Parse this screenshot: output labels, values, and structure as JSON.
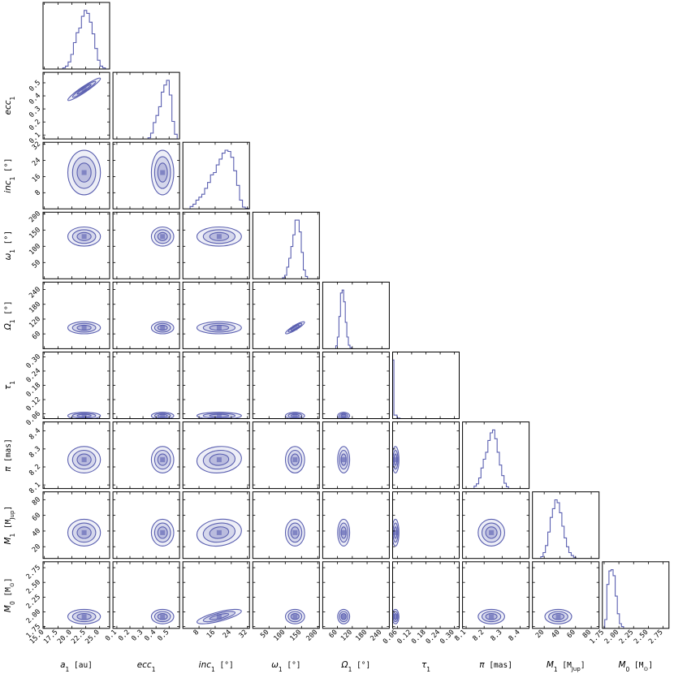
{
  "chart_data": {
    "type": "corner",
    "color": "#5a5fb0",
    "params": [
      {
        "key": "a1",
        "label_main": "a",
        "label_sub": "1",
        "label_unit": " [au]",
        "ticks": [
          "15.0",
          "17.5",
          "20.0",
          "22.5",
          "25.0"
        ],
        "tick_values": [
          15.0,
          17.5,
          20.0,
          22.5,
          25.0
        ],
        "range": [
          14.8,
          26.8
        ],
        "mean": 22.2,
        "sd": 1.2,
        "hist": [
          0.02,
          0.05,
          0.12,
          0.25,
          0.45,
          0.62,
          0.7,
          0.9,
          1.0,
          0.95,
          0.8,
          0.6,
          0.35,
          0.15,
          0.05,
          0.02
        ]
      },
      {
        "key": "ecc1",
        "label_main": "ecc",
        "label_sub": "1",
        "label_unit": "",
        "ticks": [
          "0.1",
          "0.2",
          "0.3",
          "0.4",
          "0.5"
        ],
        "tick_values": [
          0.1,
          0.2,
          0.3,
          0.4,
          0.5
        ],
        "range": [
          0.07,
          0.58
        ],
        "mean": 0.45,
        "sd": 0.035,
        "hist": [
          0.02,
          0.1,
          0.28,
          0.4,
          0.55,
          0.8,
          0.92,
          1.0,
          0.75,
          0.3,
          0.08
        ]
      },
      {
        "key": "inc1",
        "label_main": "inc",
        "label_sub": "1",
        "label_unit": " [°]",
        "ticks": [
          "8",
          "16",
          "24",
          "32"
        ],
        "tick_values": [
          8,
          16,
          24,
          32
        ],
        "range": [
          0,
          33
        ],
        "mean": 18,
        "sd": 4.5,
        "hist": [
          0.04,
          0.08,
          0.15,
          0.2,
          0.25,
          0.35,
          0.45,
          0.58,
          0.62,
          0.75,
          0.85,
          0.95,
          1.0,
          0.98,
          0.88,
          0.65,
          0.4,
          0.15,
          0.03,
          0.01
        ]
      },
      {
        "key": "omega1",
        "label_main": "ω",
        "label_sub": "1",
        "label_unit": " [°]",
        "ticks": [
          "50",
          "100",
          "150",
          "200"
        ],
        "tick_values": [
          50,
          100,
          150,
          200
        ],
        "range": [
          0,
          205
        ],
        "mean": 130,
        "sd": 12,
        "hist": [
          0.02,
          0.06,
          0.2,
          0.35,
          0.55,
          0.75,
          1.0,
          1.0,
          0.8,
          0.45,
          0.15,
          0.04
        ]
      },
      {
        "key": "Omega1",
        "label_main": "Ω",
        "label_sub": "1",
        "label_unit": " [°]",
        "ticks": [
          "60",
          "120",
          "180",
          "240"
        ],
        "tick_values": [
          60,
          120,
          180,
          240
        ],
        "range": [
          0,
          270
        ],
        "mean": 85,
        "sd": 10,
        "hist": [
          0.05,
          0.2,
          0.55,
          0.95,
          1.0,
          0.8,
          0.45,
          0.2,
          0.06,
          0.02
        ]
      },
      {
        "key": "tau1",
        "label_main": "τ",
        "label_sub": "1",
        "label_unit": "",
        "ticks": [
          "0.06",
          "0.12",
          "0.18",
          "0.24",
          "0.30"
        ],
        "tick_values": [
          0.06,
          0.12,
          0.18,
          0.24,
          0.3
        ],
        "range": [
          0.04,
          0.32
        ],
        "mean": 0.052,
        "sd": 0.006,
        "hist": [
          1.0,
          0.06,
          0.01
        ]
      },
      {
        "key": "plx",
        "label_main": "π",
        "label_sub": "",
        "label_unit": " [mas]",
        "ticks": [
          "8.1",
          "8.2",
          "8.3",
          "8.4"
        ],
        "tick_values": [
          8.1,
          8.2,
          8.3,
          8.4
        ],
        "range": [
          8.08,
          8.45
        ],
        "mean": 8.24,
        "sd": 0.03,
        "hist": [
          0.04,
          0.08,
          0.18,
          0.35,
          0.5,
          0.62,
          0.82,
          0.95,
          1.0,
          0.85,
          0.62,
          0.4,
          0.22,
          0.09,
          0.03
        ]
      },
      {
        "key": "M1",
        "label_main": "M",
        "label_sub": "1",
        "label_unit": " [M",
        "label_unit_sub": "Jup",
        "label_unit_end": "]",
        "ticks": [
          "20",
          "40",
          "60",
          "80"
        ],
        "tick_values": [
          20,
          40,
          60,
          80
        ],
        "range": [
          5,
          90
        ],
        "mean": 38,
        "sd": 7,
        "hist": [
          0.03,
          0.1,
          0.22,
          0.45,
          0.7,
          0.85,
          1.0,
          0.95,
          0.78,
          0.55,
          0.35,
          0.2,
          0.1,
          0.05,
          0.02
        ]
      },
      {
        "key": "M0",
        "label_main": "M",
        "label_sub": "0",
        "label_unit": " [M",
        "label_unit_sub": "⊙",
        "label_unit_end": "]",
        "ticks": [
          "1.75",
          "2.00",
          "2.25",
          "2.50",
          "2.75"
        ],
        "tick_values": [
          1.75,
          2.0,
          2.25,
          2.5,
          2.75
        ],
        "range": [
          1.72,
          2.85
        ],
        "mean": 1.92,
        "sd": 0.05,
        "hist": [
          0.15,
          0.75,
          0.98,
          1.0,
          0.9,
          0.55,
          0.25,
          0.08,
          0.03
        ]
      }
    ],
    "correlations": {
      "1,0": 0.95,
      "4,3": 0.9,
      "8,2": 0.75,
      "7,2": 0.15,
      "6,2": 0.1
    }
  },
  "axis_labels": {
    "x_a1": "a",
    "x_ecc1": "ecc",
    "x_inc1": "inc",
    "x_omega1": "ω",
    "x_Omega1": "Ω",
    "x_tau1": "τ",
    "x_plx": "π",
    "x_M1": "M",
    "x_M0": "M"
  }
}
